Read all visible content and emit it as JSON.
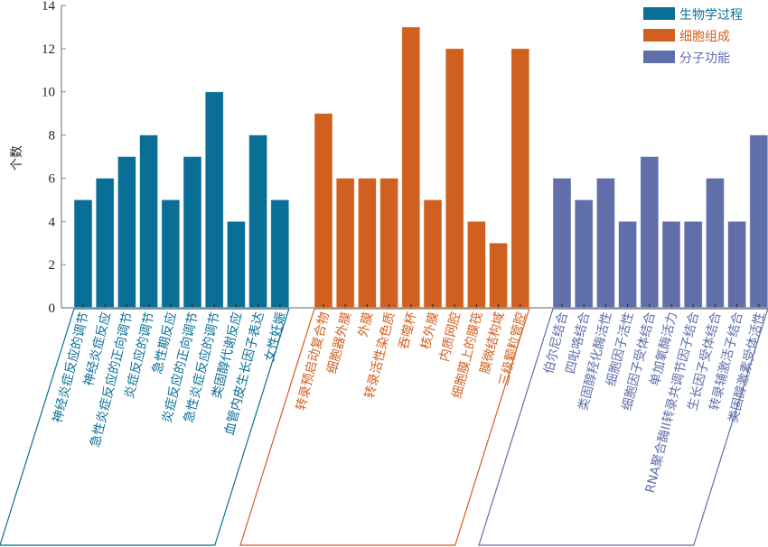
{
  "chart_data": {
    "type": "bar",
    "title": "",
    "xlabel": "",
    "ylabel": "个数",
    "ylim": [
      0,
      14
    ],
    "yticks": [
      0,
      2,
      4,
      6,
      8,
      10,
      12,
      14
    ],
    "grid": false,
    "legend_position": "top-right",
    "series": [
      {
        "name": "生物学过程",
        "color": "#0A6F96",
        "categories": [
          "神经炎症反应的调节",
          "神经炎症反应",
          "急性炎症反应的正向调节",
          "炎症反应的调节",
          "急性期反应",
          "炎症反应的正向调节",
          "急性炎症反应的调节",
          "类固醇代谢反应",
          "血管内皮生长因子表达",
          "女性妊娠"
        ],
        "values": [
          5,
          6,
          7,
          8,
          5,
          7,
          10,
          4,
          8,
          5
        ]
      },
      {
        "name": "细胞组成",
        "color": "#D0601F",
        "categories": [
          "转录预启动复合物",
          "细胞器外膜",
          "外膜",
          "转录活性染色质",
          "吞噬杯",
          "核外膜",
          "内质网腔",
          "细胞膜上的膜筏",
          "膜微结构域",
          "三级颗粒管腔"
        ],
        "values": [
          9,
          6,
          6,
          6,
          13,
          5,
          12,
          4,
          3,
          12
        ]
      },
      {
        "name": "分子功能",
        "color": "#606EAA",
        "categories": [
          "伯尔尼结合",
          "四吡咯结合",
          "类固醇羟化酶活性",
          "细胞因子活性",
          "细胞因子受体结合",
          "单加氧酶活力",
          "RNA聚合酶II转录共调节因子结合",
          "生长因子受体结合",
          "转录辅激活子结合",
          "类固醇激素受体活性"
        ],
        "values": [
          6,
          5,
          6,
          4,
          7,
          4,
          4,
          6,
          4,
          8
        ]
      }
    ]
  }
}
